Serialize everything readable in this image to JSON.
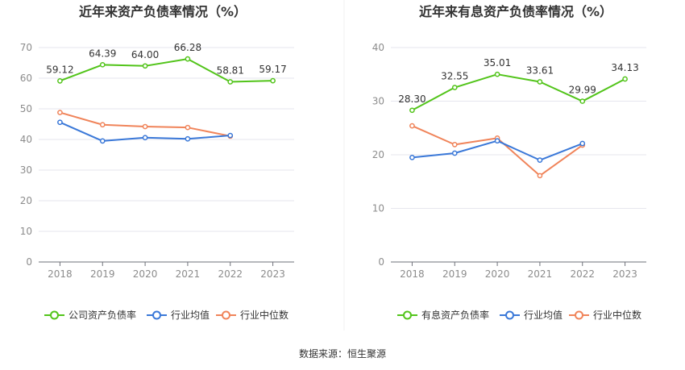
{
  "source_text": "数据来源：恒生聚源",
  "colors": {
    "company": "#52c41a",
    "average": "#3a78d8",
    "median": "#f0845a",
    "grid": "#e6e6ee",
    "axis_text": "#8c8c8c",
    "title": "#333333",
    "divider": "#f0f0f0"
  },
  "chart_data": [
    {
      "type": "line",
      "title": "近年来资产负债率情况（%）",
      "categories": [
        "2018",
        "2019",
        "2020",
        "2021",
        "2022",
        "2023"
      ],
      "ylim": [
        0,
        70
      ],
      "yticks": [
        0,
        10,
        20,
        30,
        40,
        50,
        60,
        70
      ],
      "grid": true,
      "legend_position": "bottom",
      "series": [
        {
          "name": "公司资产负债率",
          "color_key": "company",
          "labels": true,
          "values": [
            59.12,
            64.39,
            64.0,
            66.28,
            58.81,
            59.17
          ],
          "value_labels": [
            "59.12",
            "64.39",
            "64.00",
            "66.28",
            "58.81",
            "59.17"
          ]
        },
        {
          "name": "行业均值",
          "color_key": "average",
          "labels": false,
          "values": [
            45.6,
            39.5,
            40.6,
            40.2,
            41.3,
            null
          ]
        },
        {
          "name": "行业中位数",
          "color_key": "median",
          "labels": false,
          "values": [
            48.8,
            44.8,
            44.2,
            43.9,
            41.1,
            null
          ]
        }
      ]
    },
    {
      "type": "line",
      "title": "近年来有息资产负债率情况（%）",
      "categories": [
        "2018",
        "2019",
        "2020",
        "2021",
        "2022",
        "2023"
      ],
      "ylim": [
        0,
        40
      ],
      "yticks": [
        0,
        10,
        20,
        30,
        40
      ],
      "grid": true,
      "legend_position": "bottom",
      "series": [
        {
          "name": "有息资产负债率",
          "color_key": "company",
          "labels": true,
          "values": [
            28.3,
            32.55,
            35.01,
            33.61,
            29.99,
            34.13
          ],
          "value_labels": [
            "28.30",
            "32.55",
            "35.01",
            "33.61",
            "29.99",
            "34.13"
          ]
        },
        {
          "name": "行业均值",
          "color_key": "average",
          "labels": false,
          "values": [
            19.5,
            20.3,
            22.6,
            19.0,
            22.1,
            null
          ]
        },
        {
          "name": "行业中位数",
          "color_key": "median",
          "labels": false,
          "values": [
            25.4,
            21.9,
            23.1,
            16.1,
            21.8,
            null
          ]
        }
      ]
    }
  ]
}
